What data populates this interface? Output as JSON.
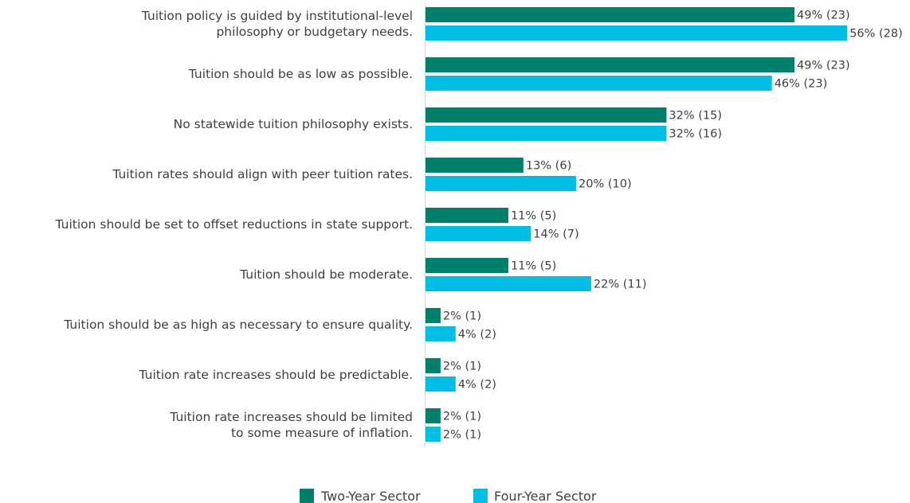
{
  "chart_data": {
    "type": "bar",
    "orientation": "horizontal",
    "categories": [
      [
        "Tuition policy is guided by institutional-level",
        "philosophy or budgetary needs."
      ],
      [
        "Tuition should be as low as possible."
      ],
      [
        "No statewide tuition philosophy exists."
      ],
      [
        "Tuition rates should align with peer tuition rates."
      ],
      [
        "Tuition should be set to offset reductions in state support."
      ],
      [
        "Tuition should be moderate."
      ],
      [
        "Tuition should be as high as necessary to ensure quality."
      ],
      [
        "Tuition rate increases should be predictable."
      ],
      [
        "Tuition rate increases should be limited",
        "to some measure of inflation."
      ]
    ],
    "series": [
      {
        "name": "Two-Year Sector",
        "color": "#00806a",
        "values": [
          49,
          49,
          32,
          13,
          11,
          11,
          2,
          2,
          2
        ],
        "labels": [
          "49% (23)",
          "49% (23)",
          "32% (15)",
          "13% (6)",
          "11% (5)",
          "11% (5)",
          "2% (1)",
          "2% (1)",
          "2% (1)"
        ]
      },
      {
        "name": "Four-Year Sector",
        "color": "#00bde6",
        "values": [
          56,
          46,
          32,
          20,
          14,
          22,
          4,
          4,
          2
        ],
        "labels": [
          "56% (28)",
          "46% (23)",
          "32% (16)",
          "20% (10)",
          "14% (7)",
          "22% (11)",
          "4% (2)",
          "4% (2)",
          "2% (1)"
        ]
      }
    ],
    "axis_color": "#d9d9d9",
    "legend_position": "bottom",
    "grid": false
  }
}
